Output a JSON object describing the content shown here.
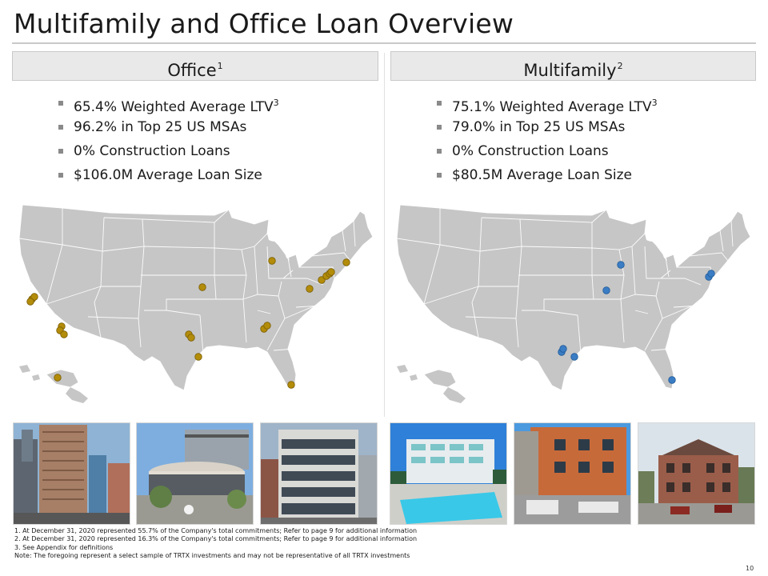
{
  "title": "Multifamily and Office Loan Overview",
  "office": {
    "header": "Office",
    "header_note": "1",
    "bullets": [
      {
        "text": "65.4% Weighted Average LTV",
        "note": "3"
      },
      {
        "text": "96.2% in Top 25 US MSAs",
        "note": ""
      },
      {
        "text": "0% Construction Loans",
        "note": ""
      },
      {
        "text": "$106.0M Average Loan Size",
        "note": ""
      }
    ],
    "marker_color": "#b38c0a",
    "marker_count": 22
  },
  "multifamily": {
    "header": "Multifamily",
    "header_note": "2",
    "bullets": [
      {
        "text": "75.1% Weighted Average LTV",
        "note": "3"
      },
      {
        "text": "79.0% in Top 25 US MSAs",
        "note": ""
      },
      {
        "text": "0% Construction Loans",
        "note": ""
      },
      {
        "text": "$80.5M Average Loan Size",
        "note": ""
      }
    ],
    "marker_color": "#3b7dc4",
    "marker_count": 8
  },
  "footnotes": [
    "1. At December 31, 2020 represented 55.7% of the Company's total commitments; Refer to page 9 for additional information",
    "2. At December 31, 2020 represented 16.3% of the Company's total commitments; Refer to page 9 for additional information",
    "3. See Appendix for definitions",
    "Note: The foregoing represent a select sample of TRTX investments and may not be representative of all TRTX investments"
  ],
  "page_number": "10",
  "colors": {
    "map_fill": "#c6c6c6",
    "header_fill": "#e9e9e9"
  },
  "icons": {
    "bullet": "square-bullet-icon"
  }
}
